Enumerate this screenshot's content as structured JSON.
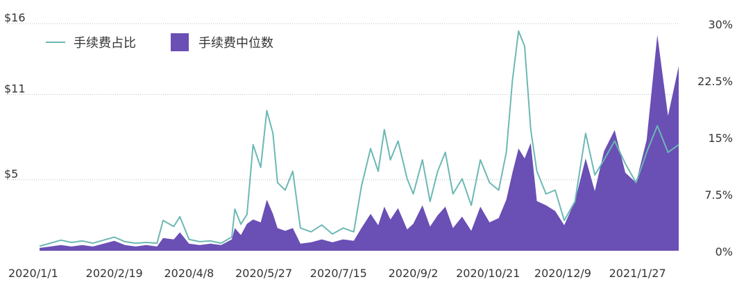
{
  "chart_data": {
    "type": "area",
    "title": "",
    "xlabel": "",
    "ylabel": "",
    "y2label": "",
    "x_tick_labels": [
      "2020/1/1",
      "2020/2/19",
      "2020/4/8",
      "2020/5/27",
      "2020/7/15",
      "2020/9/2",
      "2020/10/21",
      "2020/12/9",
      "2021/1/27"
    ],
    "y_left_ticks": [
      "$16",
      "$11",
      "$5"
    ],
    "y_right_ticks": [
      "30%",
      "22.5%",
      "15%",
      "7.5%",
      "0%"
    ],
    "ylim_left": [
      0,
      16
    ],
    "ylim_right": [
      0,
      30
    ],
    "legend_position": "top-left",
    "colors": {
      "fee_share": "#6bb8b3",
      "median_fee": "#6a4fb5",
      "grid": "#bdbdbd",
      "text": "#333333"
    },
    "series": [
      {
        "name": "手续费占比",
        "kind": "line",
        "axis": "right",
        "points": [
          [
            "2020-01-01",
            0.6
          ],
          [
            "2020-01-08",
            1.0
          ],
          [
            "2020-01-15",
            1.4
          ],
          [
            "2020-01-22",
            1.1
          ],
          [
            "2020-01-29",
            1.3
          ],
          [
            "2020-02-05",
            1.0
          ],
          [
            "2020-02-12",
            1.4
          ],
          [
            "2020-02-19",
            1.8
          ],
          [
            "2020-02-26",
            1.2
          ],
          [
            "2020-03-04",
            1.0
          ],
          [
            "2020-03-11",
            1.1
          ],
          [
            "2020-03-18",
            1.0
          ],
          [
            "2020-03-22",
            4.0
          ],
          [
            "2020-03-29",
            3.2
          ],
          [
            "2020-04-02",
            4.5
          ],
          [
            "2020-04-08",
            1.5
          ],
          [
            "2020-04-15",
            1.2
          ],
          [
            "2020-04-22",
            1.3
          ],
          [
            "2020-04-29",
            1.0
          ],
          [
            "2020-05-06",
            1.8
          ],
          [
            "2020-05-08",
            5.5
          ],
          [
            "2020-05-12",
            3.5
          ],
          [
            "2020-05-16",
            4.8
          ],
          [
            "2020-05-20",
            14.0
          ],
          [
            "2020-05-25",
            11.0
          ],
          [
            "2020-05-29",
            18.5
          ],
          [
            "2020-06-02",
            15.5
          ],
          [
            "2020-06-05",
            9.0
          ],
          [
            "2020-06-10",
            8.0
          ],
          [
            "2020-06-15",
            10.5
          ],
          [
            "2020-06-20",
            3.0
          ],
          [
            "2020-06-27",
            2.5
          ],
          [
            "2020-07-04",
            3.4
          ],
          [
            "2020-07-11",
            2.2
          ],
          [
            "2020-07-18",
            3.0
          ],
          [
            "2020-07-25",
            2.5
          ],
          [
            "2020-07-30",
            8.5
          ],
          [
            "2020-08-05",
            13.5
          ],
          [
            "2020-08-10",
            10.5
          ],
          [
            "2020-08-14",
            16.0
          ],
          [
            "2020-08-18",
            12.0
          ],
          [
            "2020-08-23",
            14.5
          ],
          [
            "2020-08-29",
            9.5
          ],
          [
            "2020-09-02",
            7.5
          ],
          [
            "2020-09-08",
            12.0
          ],
          [
            "2020-09-13",
            6.5
          ],
          [
            "2020-09-18",
            10.5
          ],
          [
            "2020-09-23",
            13.0
          ],
          [
            "2020-09-28",
            7.5
          ],
          [
            "2020-10-04",
            9.5
          ],
          [
            "2020-10-10",
            6.0
          ],
          [
            "2020-10-16",
            12.0
          ],
          [
            "2020-10-22",
            9.0
          ],
          [
            "2020-10-28",
            8.0
          ],
          [
            "2020-11-02",
            13.0
          ],
          [
            "2020-11-06",
            22.5
          ],
          [
            "2020-11-10",
            29.0
          ],
          [
            "2020-11-14",
            27.0
          ],
          [
            "2020-11-18",
            16.0
          ],
          [
            "2020-11-22",
            10.5
          ],
          [
            "2020-11-28",
            7.5
          ],
          [
            "2020-12-04",
            8.0
          ],
          [
            "2020-12-10",
            4.0
          ],
          [
            "2020-12-17",
            6.5
          ],
          [
            "2020-12-24",
            15.5
          ],
          [
            "2020-12-30",
            10.0
          ],
          [
            "2021-01-05",
            12.0
          ],
          [
            "2021-01-12",
            14.5
          ],
          [
            "2021-01-19",
            11.5
          ],
          [
            "2021-01-26",
            9.0
          ],
          [
            "2021-02-02",
            13.0
          ],
          [
            "2021-02-09",
            16.5
          ],
          [
            "2021-02-16",
            13.0
          ],
          [
            "2021-02-23",
            14.0
          ]
        ]
      },
      {
        "name": "手续费中位数",
        "kind": "area",
        "axis": "left",
        "points": [
          [
            "2020-01-01",
            0.2
          ],
          [
            "2020-01-08",
            0.3
          ],
          [
            "2020-01-15",
            0.4
          ],
          [
            "2020-01-22",
            0.3
          ],
          [
            "2020-01-29",
            0.4
          ],
          [
            "2020-02-05",
            0.3
          ],
          [
            "2020-02-12",
            0.5
          ],
          [
            "2020-02-19",
            0.7
          ],
          [
            "2020-02-26",
            0.4
          ],
          [
            "2020-03-04",
            0.3
          ],
          [
            "2020-03-11",
            0.4
          ],
          [
            "2020-03-18",
            0.3
          ],
          [
            "2020-03-22",
            0.9
          ],
          [
            "2020-03-29",
            0.8
          ],
          [
            "2020-04-02",
            1.3
          ],
          [
            "2020-04-08",
            0.5
          ],
          [
            "2020-04-15",
            0.4
          ],
          [
            "2020-04-22",
            0.5
          ],
          [
            "2020-04-29",
            0.4
          ],
          [
            "2020-05-06",
            0.8
          ],
          [
            "2020-05-08",
            1.6
          ],
          [
            "2020-05-12",
            1.1
          ],
          [
            "2020-05-16",
            1.9
          ],
          [
            "2020-05-20",
            2.2
          ],
          [
            "2020-05-25",
            2.0
          ],
          [
            "2020-05-29",
            3.6
          ],
          [
            "2020-06-02",
            2.6
          ],
          [
            "2020-06-05",
            1.6
          ],
          [
            "2020-06-10",
            1.4
          ],
          [
            "2020-06-15",
            1.6
          ],
          [
            "2020-06-20",
            0.5
          ],
          [
            "2020-06-27",
            0.6
          ],
          [
            "2020-07-04",
            0.8
          ],
          [
            "2020-07-11",
            0.6
          ],
          [
            "2020-07-18",
            0.8
          ],
          [
            "2020-07-25",
            0.7
          ],
          [
            "2020-07-30",
            1.6
          ],
          [
            "2020-08-05",
            2.6
          ],
          [
            "2020-08-10",
            1.8
          ],
          [
            "2020-08-14",
            3.1
          ],
          [
            "2020-08-18",
            2.2
          ],
          [
            "2020-08-23",
            3.0
          ],
          [
            "2020-08-29",
            1.5
          ],
          [
            "2020-09-02",
            1.9
          ],
          [
            "2020-09-08",
            3.2
          ],
          [
            "2020-09-13",
            1.7
          ],
          [
            "2020-09-18",
            2.5
          ],
          [
            "2020-09-23",
            3.1
          ],
          [
            "2020-09-28",
            1.6
          ],
          [
            "2020-10-04",
            2.4
          ],
          [
            "2020-10-10",
            1.4
          ],
          [
            "2020-10-16",
            3.1
          ],
          [
            "2020-10-22",
            2.0
          ],
          [
            "2020-10-28",
            2.3
          ],
          [
            "2020-11-02",
            3.6
          ],
          [
            "2020-11-06",
            5.5
          ],
          [
            "2020-11-10",
            7.2
          ],
          [
            "2020-11-14",
            6.5
          ],
          [
            "2020-11-18",
            7.6
          ],
          [
            "2020-11-22",
            3.5
          ],
          [
            "2020-11-28",
            3.2
          ],
          [
            "2020-12-04",
            2.8
          ],
          [
            "2020-12-10",
            1.8
          ],
          [
            "2020-12-17",
            3.5
          ],
          [
            "2020-12-24",
            6.5
          ],
          [
            "2020-12-30",
            4.2
          ],
          [
            "2021-01-05",
            7.0
          ],
          [
            "2021-01-12",
            8.5
          ],
          [
            "2021-01-19",
            5.5
          ],
          [
            "2021-01-26",
            4.8
          ],
          [
            "2021-02-02",
            7.8
          ],
          [
            "2021-02-09",
            15.2
          ],
          [
            "2021-02-16",
            9.5
          ],
          [
            "2021-02-23",
            13.0
          ]
        ]
      }
    ]
  }
}
